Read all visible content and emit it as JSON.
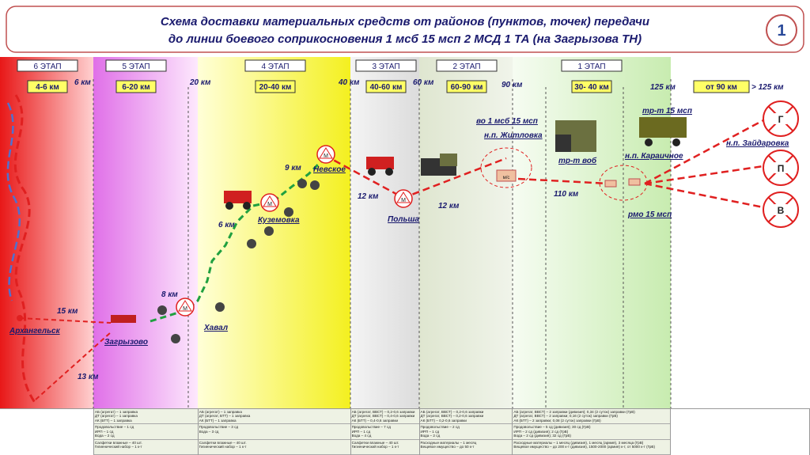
{
  "header": {
    "title_line1": "Схема доставки материальных средств от районов (пунктов, точек) передачи",
    "title_line2": "до линии боевого соприкосновения 1 мсб 15 мсп 2 МСД 1 ТА (на Загрызова ТН)",
    "slide_number": "1"
  },
  "stages": [
    {
      "label": "6 ЭТАП",
      "range": "4-6 км"
    },
    {
      "label": "5 ЭТАП",
      "range": "6-20 км"
    },
    {
      "label": "4 ЭТАП",
      "range": "20-40 км"
    },
    {
      "label": "3 ЭТАП",
      "range": "40-60 км"
    },
    {
      "label": "2 ЭТАП",
      "range": "60-90 км"
    },
    {
      "label": "1 ЭТАП",
      "range": "30- 40 км"
    }
  ],
  "extra_range": "от 90 км",
  "distance_marks": [
    "6 км",
    "20 км",
    "40 км",
    "60 км",
    "90 км",
    "125 км",
    "> 125 км"
  ],
  "places": [
    "Архангельск",
    "Загрызово",
    "Хавал",
    "Куземовка",
    "Невское",
    "Польша",
    "во 1 мсб 15 мсп",
    "н.п. Житловка",
    "тр-т воб",
    "н.п. Караичное",
    "тр-т 15 мсп",
    "н.п. Зайдаровка",
    "рмо 15 мсп"
  ],
  "segments": [
    "15 км",
    "13 км",
    "8 км",
    "6 км",
    "9 км",
    "12 км",
    "12 км",
    "110 км"
  ],
  "targets": [
    "Г",
    "П",
    "В"
  ],
  "point_marker": "М",
  "medical_label": "м/с",
  "table": {
    "columns": [
      [
        [
          "АБ (агрегат) – 1 заправка",
          "ДТ (агрегат) – 1 заправка",
          "АК (БТТ) – 1 заправка"
        ],
        [
          "Продовольствие – 1 сд",
          "ИРП – 1 сд",
          "Вода – 2 сд"
        ],
        [
          "Салфетки влажные – 40 шт.",
          "Гигиенический набор – 1 к-т"
        ]
      ],
      [
        [
          "АБ (агрегат) – 1 заправка",
          "ДТ (агрегат, БТТ) – 1 заправка",
          "АК (БТТ) – 1 заправка"
        ],
        [
          "Продовольствие – 3 сд",
          "Вода – 3 сд"
        ],
        [
          "Салфетки влажные – 40 шт.",
          "Гигиенический набор – 1 к-т"
        ]
      ],
      [
        [
          "АБ (агрегат, ВВСТ) – 0,2-0,6 заправки",
          "ДТ (агрегат, ВВСТ) – 0,4-0,6 заправки",
          "АК (БТТ) – 0,4-0,6 заправки"
        ],
        [
          "Продовольствие – 7 сд",
          "ИРП – 1 сд",
          "Вода – 4 сд"
        ],
        [
          "Салфетки влажные – 40 шт.",
          "Гигиенический набор – 1 к-т"
        ]
      ],
      [
        [
          "АБ (агрегат, ВВСТ) – 0,2-0,6 заправки",
          "ДТ (агрегат, ВВСТ) – 0,2-0,6 заправки",
          "АК (БТТ) – 0,2-0,6 заправки"
        ],
        [
          "Продовольствие – 2 сд",
          "ИРП – 1 сд",
          "Вода – 2 сд"
        ],
        [
          "Расходные материалы – 1 месяц",
          "Вещевое имущество – до 50 к-т"
        ]
      ],
      [
        [
          "АБ (агрегат, ВВСТ) – 2 заправки (дивизия); 0,34 (2 суток) заправки (ГрВ)",
          "ДТ (агрегат, ВВСТ) – 2 заправки; 0,16 (2 суток) заправки (ГрВ)",
          "АК (БТТ) – 2 заправки; 0,08 (2 суток) заправки (ГрВ)"
        ],
        [
          "Продовольствие – 5 сд (дивизия); 30 сд (ГрВ)",
          "ИРП – 2 сд (дивизия); 2 сд (ГрВ)",
          "Вода – 2 сд (дивизия); 32 сд (ГрВ)"
        ],
        [
          "Расходные материалы – 1 месяц (дивизия), 1 месяц (армия), 3 месяца (ГрВ)",
          "Вещевое имущество – до 200 к-т (дивизия), 1500-2000 (армия) к-т, от 5000 к-т (ГрВ)"
        ]
      ]
    ]
  }
}
